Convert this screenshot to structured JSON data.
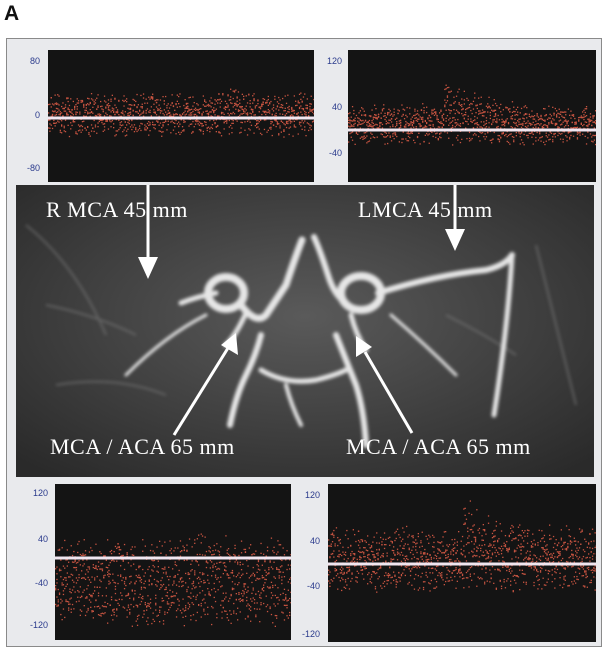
{
  "panel_label": "A",
  "spectra": {
    "top_left": {
      "ticks": [
        "80",
        "0",
        "-80"
      ]
    },
    "top_right": {
      "ticks": [
        "120",
        "40",
        "-40"
      ]
    },
    "bottom_left": {
      "ticks": [
        "120",
        "40",
        "-40",
        "-120"
      ]
    },
    "bottom_right": {
      "ticks": [
        "120",
        "40",
        "-40",
        "-120"
      ]
    }
  },
  "labels": {
    "r_mca": "R MCA   45 mm",
    "l_mca": "LMCA   45 mm",
    "mca_aca_left": "MCA / ACA   65 mm",
    "mca_aca_right": "MCA / ACA  65 mm"
  },
  "colors": {
    "spectrum_background": "#141414",
    "spectrum_signal": "#e8604a",
    "baseline": "#f0e6f0",
    "tick_text": "#2a3a8c",
    "angio_background": "#3c3c3c",
    "vessel": "#e6e6e6"
  }
}
